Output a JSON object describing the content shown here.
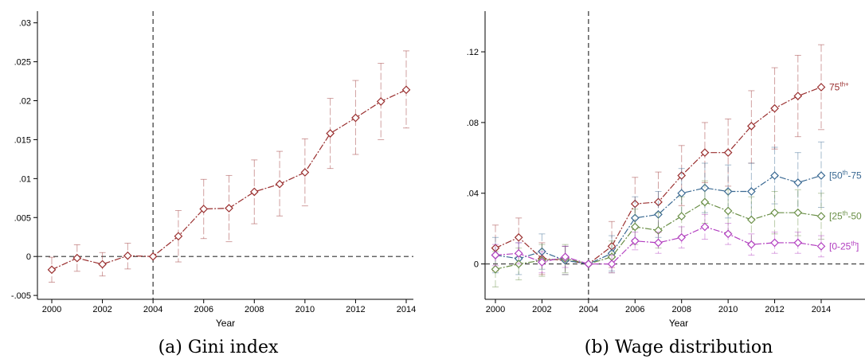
{
  "chart_data": [
    {
      "type": "line",
      "caption": "(a) Gini index",
      "xlabel": "Year",
      "ylabel": "",
      "xlim": [
        2000,
        2014
      ],
      "ylim": [
        -0.0055,
        0.0315
      ],
      "x_ticks": [
        2000,
        2002,
        2004,
        2006,
        2008,
        2010,
        2012,
        2014
      ],
      "x_tick_labels": [
        "2000",
        "2002",
        "2004",
        "2006",
        "2008",
        "2010",
        "2012",
        "2014"
      ],
      "y_ticks": [
        -0.005,
        0,
        0.005,
        0.01,
        0.015,
        0.02,
        0.025,
        0.03
      ],
      "y_tick_labels": [
        "-.005",
        "0",
        ".005",
        ".01",
        ".015",
        ".02",
        ".025",
        ".03"
      ],
      "reference_vline": 2004,
      "reference_hline": 0,
      "x": [
        2000,
        2001,
        2002,
        2003,
        2004,
        2005,
        2006,
        2007,
        2008,
        2009,
        2010,
        2011,
        2012,
        2013,
        2014
      ],
      "series": [
        {
          "color": "#9a2f2f",
          "values": [
            -0.0017,
            -0.0002,
            -0.001,
            0.0001,
            0,
            0.0026,
            0.0061,
            0.0062,
            0.0083,
            0.0093,
            0.0108,
            0.0158,
            0.0178,
            0.0199,
            0.0214
          ],
          "lower": [
            -0.0033,
            -0.0019,
            -0.0025,
            -0.0016,
            0,
            -0.0007,
            0.0023,
            0.0019,
            0.0042,
            0.0052,
            0.0065,
            0.0113,
            0.0131,
            0.015,
            0.0165
          ],
          "upper": [
            -0.0001,
            0.0015,
            0.0005,
            0.0017,
            0,
            0.0059,
            0.0099,
            0.0104,
            0.0124,
            0.0135,
            0.0151,
            0.0203,
            0.0226,
            0.0248,
            0.0264
          ]
        }
      ]
    },
    {
      "type": "line",
      "caption": "(b) Wage distribution",
      "xlabel": "Year",
      "ylabel": "",
      "xlim": [
        2000,
        2016.5
      ],
      "ylim": [
        -0.02,
        0.143
      ],
      "x_ticks": [
        2000,
        2002,
        2004,
        2006,
        2008,
        2010,
        2012,
        2014
      ],
      "x_tick_labels": [
        "2000",
        "2002",
        "2004",
        "2006",
        "2008",
        "2010",
        "2012",
        "2014"
      ],
      "y_ticks": [
        0,
        0.04,
        0.08,
        0.12
      ],
      "y_tick_labels": [
        "0",
        ".04",
        ".08",
        ".12"
      ],
      "reference_vline": 2004,
      "reference_hline": 0,
      "x": [
        2000,
        2001,
        2002,
        2003,
        2004,
        2005,
        2006,
        2007,
        2008,
        2009,
        2010,
        2011,
        2012,
        2013,
        2014
      ],
      "series": [
        {
          "label_base": "75",
          "label_sup": "th+",
          "label_tail": "",
          "color": "#9a2f2f",
          "values": [
            0.009,
            0.015,
            0.003,
            0.002,
            0,
            0.01,
            0.034,
            0.035,
            0.05,
            0.063,
            0.063,
            0.078,
            0.088,
            0.095,
            0.1
          ],
          "lower": [
            -0.004,
            0.004,
            -0.006,
            -0.006,
            0,
            -0.002,
            0.02,
            0.018,
            0.033,
            0.046,
            0.044,
            0.057,
            0.065,
            0.072,
            0.076
          ],
          "upper": [
            0.022,
            0.026,
            0.012,
            0.01,
            0,
            0.024,
            0.049,
            0.052,
            0.067,
            0.08,
            0.082,
            0.098,
            0.111,
            0.118,
            0.124
          ]
        },
        {
          "label_base": "[50",
          "label_sup": "th",
          "label_tail": "-75",
          "color": "#3b6a93",
          "values": [
            0.005,
            0.003,
            0.007,
            0.002,
            0,
            0.006,
            0.026,
            0.028,
            0.04,
            0.043,
            0.041,
            0.041,
            0.05,
            0.046,
            0.05
          ],
          "lower": [
            -0.005,
            -0.006,
            -0.003,
            -0.006,
            0,
            -0.004,
            0.014,
            0.015,
            0.026,
            0.029,
            0.026,
            0.025,
            0.034,
            0.029,
            0.032
          ],
          "upper": [
            0.015,
            0.012,
            0.017,
            0.01,
            0,
            0.016,
            0.038,
            0.041,
            0.054,
            0.057,
            0.056,
            0.057,
            0.066,
            0.063,
            0.069
          ]
        },
        {
          "label_base": "[25",
          "label_sup": "th",
          "label_tail": "-50",
          "color": "#6a8f47",
          "values": [
            -0.003,
            0,
            0.002,
            0.003,
            0,
            0.004,
            0.021,
            0.019,
            0.027,
            0.035,
            0.03,
            0.025,
            0.029,
            0.029,
            0.027
          ],
          "lower": [
            -0.013,
            -0.009,
            -0.007,
            -0.005,
            0,
            -0.005,
            0.011,
            0.009,
            0.016,
            0.023,
            0.018,
            0.012,
            0.017,
            0.016,
            0.014
          ],
          "upper": [
            0.007,
            0.009,
            0.011,
            0.011,
            0,
            0.013,
            0.031,
            0.029,
            0.038,
            0.047,
            0.042,
            0.038,
            0.041,
            0.042,
            0.04
          ]
        },
        {
          "label_base": "[0-25",
          "label_sup": "th",
          "label_tail": "]",
          "color": "#b23fc0",
          "values": [
            0.005,
            0.006,
            0.001,
            0.004,
            0,
            0,
            0.013,
            0.012,
            0.015,
            0.021,
            0.017,
            0.011,
            0.012,
            0.012,
            0.01
          ],
          "lower": [
            -0.001,
            0,
            -0.005,
            -0.002,
            0,
            -0.005,
            0.008,
            0.006,
            0.009,
            0.014,
            0.011,
            0.005,
            0.006,
            0.006,
            0.004
          ],
          "upper": [
            0.011,
            0.012,
            0.007,
            0.01,
            0,
            0.005,
            0.018,
            0.018,
            0.021,
            0.028,
            0.023,
            0.017,
            0.018,
            0.018,
            0.016
          ]
        }
      ]
    }
  ]
}
